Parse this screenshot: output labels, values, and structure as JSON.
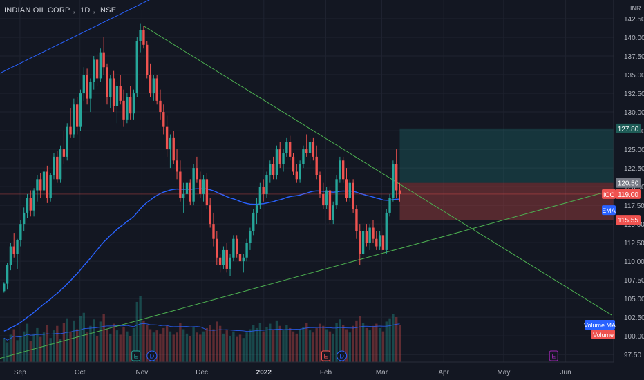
{
  "header": {
    "symbol": "INDIAN OIL CORP",
    "interval": "1D",
    "exchange": "NSE",
    "currency": "INR"
  },
  "colors": {
    "background": "#131722",
    "grid": "#1f2330",
    "up": "#26a69a",
    "down": "#ef5350",
    "ema": "#2962ff",
    "trend_upper": "#2962ff",
    "trend_down": "#4caf50",
    "trend_support": "#4caf50",
    "axis_text": "#b2b5be"
  },
  "chart_data": {
    "type": "candlestick",
    "ylim": [
      96.5,
      145.0
    ],
    "y_ticks": [
      97.5,
      100.0,
      102.5,
      105.0,
      107.5,
      110.0,
      112.5,
      115.0,
      117.5,
      120.0,
      122.5,
      125.0,
      127.5,
      130.0,
      132.5,
      135.0,
      137.5,
      140.0,
      142.5
    ],
    "x_labels": [
      "Sep",
      "Oct",
      "Nov",
      "Dec",
      "2022",
      "Feb",
      "Mar",
      "Apr",
      "May",
      "Jun"
    ],
    "x_label_dates": [
      "2021-09-01",
      "2021-10-01",
      "2021-11-01",
      "2021-12-01",
      "2022-01-01",
      "2022-02-01",
      "2022-03-01",
      "2022-04-01",
      "2022-05-01",
      "2022-06-01"
    ],
    "x_range": [
      "2021-08-22",
      "2022-06-25"
    ],
    "closes": [
      106,
      108,
      111,
      113,
      112,
      114,
      116,
      118,
      117,
      119,
      120,
      121,
      122,
      120,
      121,
      123,
      122,
      124,
      125,
      127,
      126,
      128,
      126,
      130,
      133,
      131,
      132,
      135,
      134,
      136,
      138,
      137,
      139,
      141,
      140,
      142,
      141,
      143,
      142,
      144,
      143,
      142,
      141,
      139,
      140,
      138,
      136,
      134,
      133,
      135,
      136,
      135,
      134,
      132,
      131,
      130,
      128,
      127,
      129,
      127,
      124,
      122,
      121,
      120,
      119,
      118,
      119,
      118,
      117,
      116,
      115,
      112,
      110,
      108,
      107,
      106,
      107,
      108,
      109,
      110,
      111,
      112,
      113,
      114,
      116,
      117,
      118,
      119,
      120,
      120,
      119,
      118,
      117,
      116,
      117,
      116,
      115,
      114,
      116,
      117,
      118,
      117,
      116,
      114,
      115,
      116,
      117,
      118,
      117,
      116,
      115,
      114,
      116,
      118,
      115,
      113,
      112,
      114,
      116,
      121,
      124,
      122
    ],
    "series": [
      {
        "name": "IOC",
        "ohlc": [
          [
            106.0,
            107.2,
            105.8,
            107.0
          ],
          [
            107.0,
            109.8,
            106.2,
            109.5
          ],
          [
            109.5,
            112.5,
            108.8,
            112.0
          ],
          [
            112.0,
            113.8,
            110.5,
            111.0
          ],
          [
            111.0,
            113.0,
            109.0,
            112.8
          ],
          [
            112.8,
            115.5,
            112.0,
            115.0
          ],
          [
            115.0,
            117.2,
            114.0,
            116.5
          ],
          [
            116.5,
            119.0,
            115.8,
            118.5
          ],
          [
            118.5,
            119.5,
            116.0,
            116.8
          ],
          [
            116.8,
            119.8,
            116.0,
            119.5
          ],
          [
            119.5,
            121.5,
            118.0,
            121.0
          ],
          [
            121.0,
            121.8,
            118.5,
            119.5
          ],
          [
            119.5,
            122.5,
            118.8,
            122.0
          ],
          [
            122.0,
            122.8,
            117.8,
            118.5
          ],
          [
            118.5,
            121.8,
            118.0,
            121.5
          ],
          [
            121.5,
            124.5,
            121.0,
            124.0
          ],
          [
            124.0,
            124.8,
            120.5,
            121.0
          ],
          [
            121.0,
            125.5,
            120.5,
            125.0
          ],
          [
            125.0,
            127.5,
            123.0,
            124.0
          ],
          [
            124.0,
            128.5,
            123.5,
            128.0
          ],
          [
            128.0,
            130.5,
            126.5,
            127.0
          ],
          [
            127.0,
            131.8,
            126.5,
            131.0
          ],
          [
            131.0,
            132.0,
            127.0,
            128.0
          ],
          [
            128.0,
            133.0,
            127.5,
            132.5
          ],
          [
            132.5,
            136.0,
            131.5,
            135.0
          ],
          [
            135.0,
            135.8,
            131.0,
            131.8
          ],
          [
            131.8,
            134.5,
            130.0,
            134.0
          ],
          [
            134.0,
            137.5,
            133.0,
            137.0
          ],
          [
            137.0,
            137.8,
            133.5,
            134.5
          ],
          [
            134.5,
            138.5,
            134.0,
            138.0
          ],
          [
            138.0,
            140.0,
            135.0,
            136.0
          ],
          [
            136.0,
            136.5,
            131.0,
            132.0
          ],
          [
            132.0,
            135.0,
            130.5,
            134.5
          ],
          [
            134.5,
            135.5,
            130.0,
            130.8
          ],
          [
            130.8,
            134.0,
            128.5,
            133.5
          ],
          [
            133.5,
            135.0,
            131.0,
            131.5
          ],
          [
            131.5,
            133.0,
            128.0,
            129.0
          ],
          [
            129.0,
            132.5,
            128.5,
            132.0
          ],
          [
            132.0,
            133.5,
            129.0,
            129.8
          ],
          [
            129.8,
            133.0,
            129.0,
            132.5
          ],
          [
            132.5,
            140.0,
            132.0,
            139.5
          ],
          [
            139.5,
            141.8,
            138.0,
            141.0
          ],
          [
            141.0,
            141.5,
            138.5,
            139.0
          ],
          [
            139.0,
            139.5,
            134.5,
            135.0
          ],
          [
            135.0,
            136.5,
            132.0,
            132.5
          ],
          [
            132.5,
            135.0,
            131.5,
            134.5
          ],
          [
            134.5,
            135.0,
            131.0,
            131.5
          ],
          [
            131.5,
            133.0,
            129.0,
            130.0
          ],
          [
            130.0,
            131.0,
            127.0,
            128.0
          ],
          [
            128.0,
            129.5,
            124.0,
            125.0
          ],
          [
            125.0,
            127.0,
            122.5,
            126.5
          ],
          [
            126.5,
            127.5,
            123.0,
            123.5
          ],
          [
            123.5,
            125.0,
            121.0,
            122.0
          ],
          [
            122.0,
            123.5,
            118.0,
            118.5
          ],
          [
            118.5,
            120.5,
            116.5,
            119.0
          ],
          [
            119.0,
            121.5,
            118.0,
            120.5
          ],
          [
            120.5,
            121.0,
            117.5,
            118.0
          ],
          [
            118.0,
            123.0,
            117.5,
            122.5
          ],
          [
            122.5,
            124.0,
            120.5,
            121.0
          ],
          [
            121.0,
            122.0,
            118.5,
            119.0
          ],
          [
            119.0,
            121.5,
            118.0,
            121.0
          ],
          [
            121.0,
            121.8,
            117.0,
            117.5
          ],
          [
            117.5,
            118.5,
            114.5,
            115.0
          ],
          [
            115.0,
            116.5,
            112.0,
            113.0
          ],
          [
            113.0,
            114.0,
            109.5,
            110.5
          ],
          [
            110.5,
            111.0,
            108.5,
            109.5
          ],
          [
            109.5,
            112.0,
            109.0,
            111.5
          ],
          [
            111.5,
            112.5,
            108.5,
            109.0
          ],
          [
            109.0,
            111.0,
            108.0,
            110.5
          ],
          [
            110.5,
            113.5,
            110.0,
            113.0
          ],
          [
            113.0,
            113.5,
            110.5,
            111.0
          ],
          [
            111.0,
            111.5,
            109.0,
            110.0
          ],
          [
            110.0,
            111.0,
            108.5,
            110.5
          ],
          [
            110.5,
            113.0,
            110.0,
            112.5
          ],
          [
            112.5,
            114.5,
            111.5,
            114.0
          ],
          [
            114.0,
            117.0,
            113.5,
            116.5
          ],
          [
            116.5,
            118.5,
            115.0,
            117.5
          ],
          [
            117.5,
            120.5,
            117.0,
            120.0
          ],
          [
            120.0,
            121.0,
            118.0,
            119.0
          ],
          [
            119.0,
            122.0,
            118.5,
            121.5
          ],
          [
            121.5,
            123.5,
            120.5,
            123.0
          ],
          [
            123.0,
            124.0,
            121.0,
            121.5
          ],
          [
            121.5,
            125.5,
            121.0,
            125.0
          ],
          [
            125.0,
            126.0,
            122.5,
            123.0
          ],
          [
            123.0,
            125.0,
            122.0,
            124.5
          ],
          [
            124.5,
            126.5,
            124.0,
            126.0
          ],
          [
            126.0,
            126.8,
            123.5,
            124.0
          ],
          [
            124.0,
            124.5,
            121.5,
            122.0
          ],
          [
            122.0,
            123.0,
            120.5,
            121.0
          ],
          [
            121.0,
            123.5,
            120.5,
            123.0
          ],
          [
            123.0,
            125.5,
            122.5,
            125.0
          ],
          [
            125.0,
            127.0,
            124.0,
            124.5
          ],
          [
            124.5,
            126.5,
            123.0,
            126.0
          ],
          [
            126.0,
            126.5,
            123.5,
            124.0
          ],
          [
            124.0,
            125.5,
            121.0,
            121.5
          ],
          [
            121.5,
            122.0,
            118.5,
            119.0
          ],
          [
            119.0,
            120.5,
            117.0,
            117.5
          ],
          [
            117.5,
            120.0,
            117.0,
            119.5
          ],
          [
            119.5,
            120.0,
            115.0,
            115.5
          ],
          [
            115.5,
            118.0,
            115.0,
            117.5
          ],
          [
            117.5,
            121.5,
            117.0,
            121.0
          ],
          [
            121.0,
            124.0,
            120.5,
            123.5
          ],
          [
            123.5,
            124.0,
            120.5,
            121.0
          ],
          [
            121.0,
            122.5,
            118.0,
            118.5
          ],
          [
            118.5,
            121.0,
            118.0,
            120.5
          ],
          [
            120.5,
            121.0,
            116.5,
            117.0
          ],
          [
            117.0,
            117.5,
            113.0,
            114.0
          ],
          [
            114.0,
            115.0,
            109.5,
            111.0
          ],
          [
            111.0,
            114.5,
            110.5,
            114.0
          ],
          [
            114.0,
            115.0,
            112.0,
            112.5
          ],
          [
            112.5,
            115.0,
            111.5,
            114.5
          ],
          [
            114.5,
            115.5,
            112.5,
            113.0
          ],
          [
            113.0,
            114.0,
            111.5,
            112.0
          ],
          [
            112.0,
            114.0,
            111.5,
            113.5
          ],
          [
            113.5,
            114.5,
            111.0,
            111.5
          ],
          [
            111.5,
            117.0,
            111.0,
            116.5
          ],
          [
            116.5,
            119.0,
            116.0,
            118.5
          ],
          [
            118.5,
            123.5,
            118.0,
            123.0
          ],
          [
            123.0,
            125.0,
            118.5,
            119.5
          ],
          [
            119.5,
            120.5,
            118.0,
            119.0
          ]
        ],
        "volumes": [
          22,
          18,
          25,
          30,
          20,
          24,
          28,
          35,
          19,
          26,
          31,
          23,
          27,
          34,
          22,
          29,
          33,
          21,
          36,
          40,
          28,
          38,
          30,
          42,
          45,
          27,
          33,
          39,
          24,
          37,
          44,
          30,
          26,
          35,
          29,
          25,
          32,
          28,
          24,
          31,
          55,
          60,
          38,
          34,
          30,
          27,
          29,
          26,
          31,
          33,
          28,
          25,
          27,
          36,
          30,
          26,
          24,
          32,
          27,
          25,
          28,
          31,
          34,
          30,
          37,
          33,
          26,
          29,
          24,
          28,
          23,
          25,
          22,
          27,
          30,
          34,
          31,
          36,
          28,
          32,
          35,
          30,
          38,
          33,
          29,
          34,
          31,
          28,
          26,
          30,
          32,
          36,
          29,
          27,
          31,
          35,
          33,
          30,
          28,
          26,
          36,
          39,
          34,
          30,
          27,
          33,
          38,
          42,
          36,
          31,
          29,
          33,
          35,
          31,
          28,
          37,
          40,
          44,
          41,
          34
        ]
      },
      {
        "name": "EMA",
        "note": "long exponential moving average",
        "from_index": 0
      }
    ],
    "trendlines": [
      {
        "name": "upper-channel",
        "p1": [
          "2021-08-22",
          135.2
        ],
        "p2": [
          "2021-12-05",
          149.0
        ]
      },
      {
        "name": "descending-resistance",
        "p1": [
          "2021-11-02",
          141.5
        ],
        "p2": [
          "2022-06-24",
          102.8
        ]
      },
      {
        "name": "ascending-support",
        "p1": [
          "2021-08-22",
          97.0
        ],
        "p2": [
          "2022-06-24",
          119.5
        ]
      }
    ],
    "position": {
      "type": "long",
      "entry": 120.5,
      "target": 127.8,
      "stop": 115.55,
      "start": "2022-03-10",
      "end": "2022-06-25"
    },
    "price_labels": [
      {
        "text": "127.80",
        "value": 127.8,
        "color": "#1e5c57"
      },
      {
        "text": "120.50",
        "value": 120.5,
        "color": "#787b86"
      },
      {
        "text": "119.00",
        "value": 119.0,
        "color": "#ef5350",
        "tag": "IOC"
      },
      {
        "text": "115.55",
        "value": 115.55,
        "color": "#ef5350",
        "tag": "EMA"
      }
    ],
    "event_markers": [
      {
        "label": "E",
        "date": "2021-10-29",
        "color": "#26a69a"
      },
      {
        "label": "D",
        "date": "2021-11-06",
        "color": "#2962ff"
      },
      {
        "label": "E",
        "date": "2022-02-01",
        "color": "#ef5350"
      },
      {
        "label": "D",
        "date": "2022-02-09",
        "color": "#2962ff"
      },
      {
        "label": "E",
        "date": "2022-05-26",
        "color": "#9c27b0"
      }
    ],
    "volume_labels": [
      "Volume MA",
      "Volume"
    ],
    "current_price": 119.0,
    "grid": true,
    "legend": "top-left"
  }
}
